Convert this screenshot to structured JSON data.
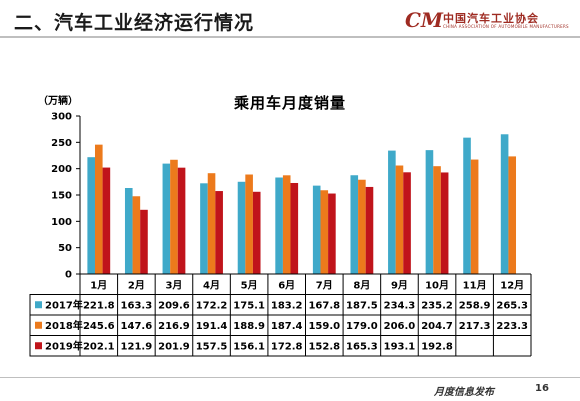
{
  "slide": {
    "title": "二、汽车工业经济运行情况",
    "logo_mark": "CM",
    "logo_text": "中国汽车工业协会",
    "logo_subtext": "CHINA ASSOCIATION OF AUTOMOBILE MANUFACTURERS",
    "footer_text": "月度信息发布",
    "page_number": "16"
  },
  "chart_data": {
    "type": "bar",
    "title": "乘用车月度销量",
    "unit_label": "（万辆）",
    "xlabel": "",
    "ylabel": "",
    "ylim": [
      0,
      300
    ],
    "yticks": [
      0,
      50,
      100,
      150,
      200,
      250,
      300
    ],
    "grid": false,
    "legend": "table-below",
    "categories": [
      "1月",
      "2月",
      "3月",
      "4月",
      "5月",
      "6月",
      "7月",
      "8月",
      "9月",
      "10月",
      "11月",
      "12月"
    ],
    "series": [
      {
        "name": "2017年",
        "color": "#3fa9c9",
        "values": [
          221.8,
          163.3,
          209.6,
          172.2,
          175.1,
          183.2,
          167.8,
          187.5,
          234.3,
          235.2,
          258.9,
          265.3
        ]
      },
      {
        "name": "2018年",
        "color": "#ec7a1c",
        "values": [
          245.6,
          147.6,
          216.9,
          191.4,
          188.9,
          187.4,
          159.0,
          179.0,
          206.0,
          204.7,
          217.3,
          223.3
        ]
      },
      {
        "name": "2019年",
        "color": "#c0141b",
        "values": [
          202.1,
          121.9,
          201.9,
          157.5,
          156.1,
          172.8,
          152.8,
          165.3,
          193.1,
          192.8,
          null,
          null
        ]
      }
    ],
    "table_labels": [
      [
        "221.8",
        "163.3",
        "209.6",
        "172.2",
        "175.1",
        "183.2",
        "167.8",
        "187.5",
        "234.3",
        "235.2",
        "258.9",
        "265.3"
      ],
      [
        "245.6",
        "147.6",
        "216.9",
        "191.4",
        "188.9",
        "187.4",
        "159.0",
        "179.0",
        "206.0",
        "204.7",
        "217.3",
        "223.3"
      ],
      [
        "202.1",
        "121.9",
        "201.9",
        "157.5",
        "156.1",
        "172.8",
        "152.8",
        "165.3",
        "193.1",
        "192.8",
        "",
        ""
      ]
    ]
  }
}
